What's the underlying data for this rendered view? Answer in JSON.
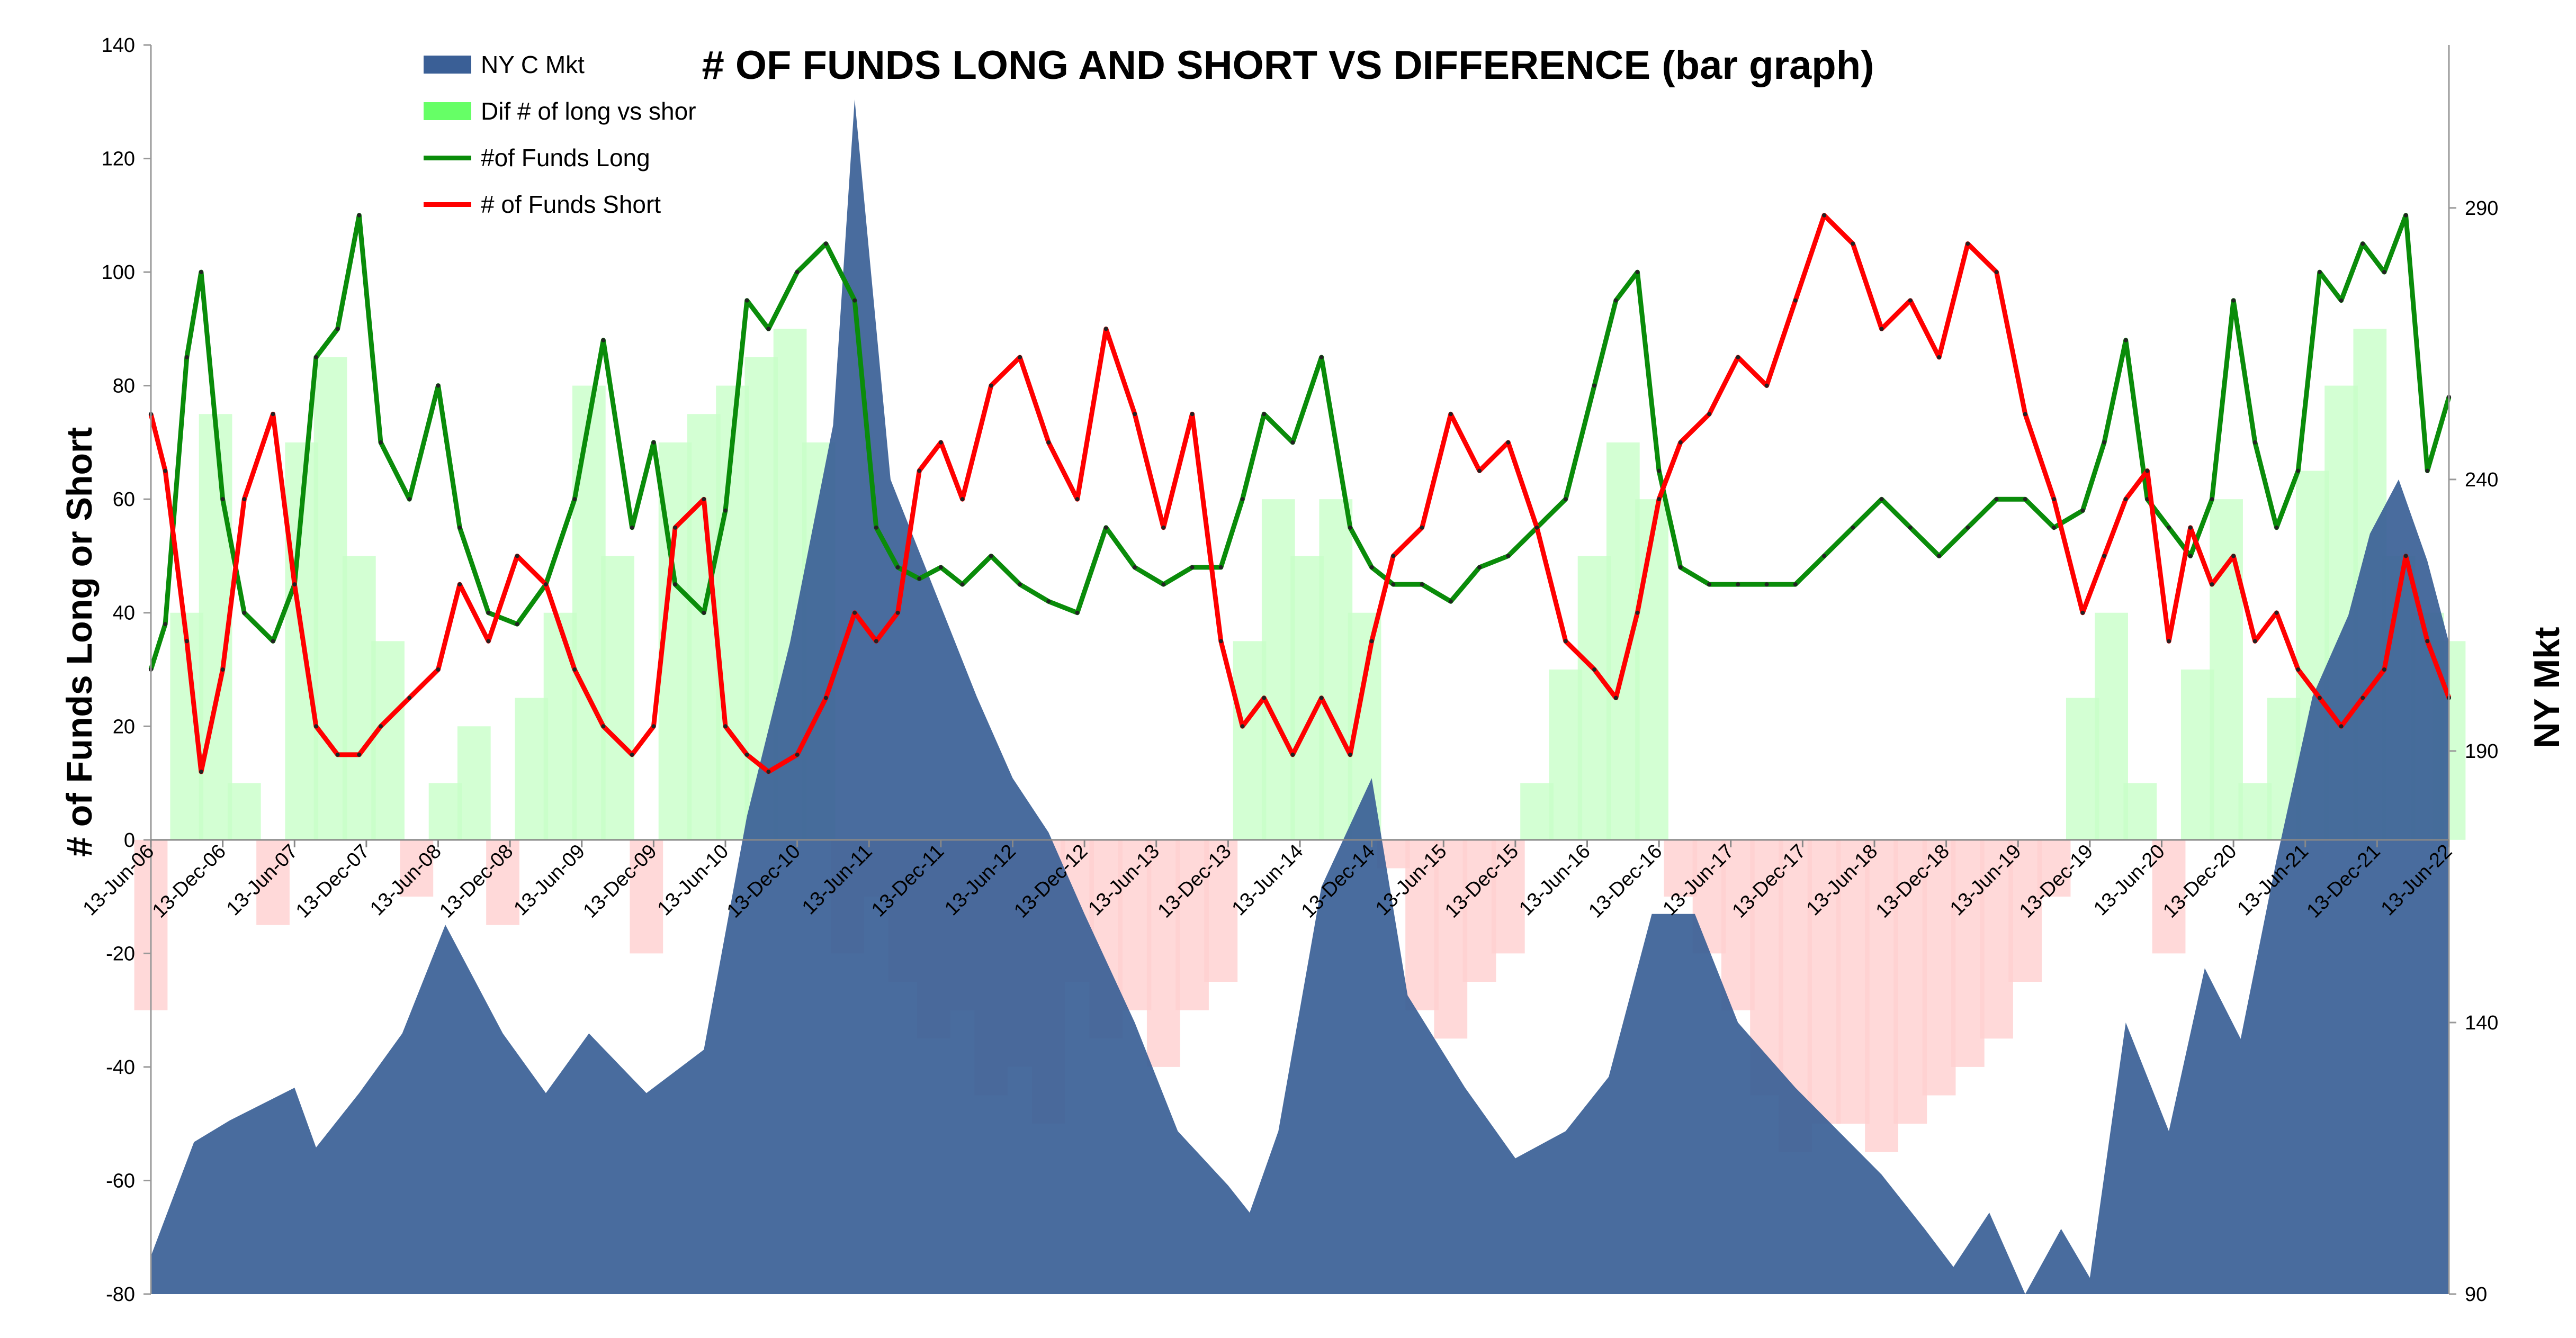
{
  "chart_data": {
    "type": "line",
    "title": "# OF FUNDS LONG AND SHORT VS DIFFERENCE (bar graph)",
    "ylabel_left": "# of Funds Long or Short",
    "ylabel_right": "NY Mkt",
    "ylim_left": [
      -80,
      140
    ],
    "yticks_left": [
      140,
      120,
      100,
      80,
      60,
      40,
      20,
      0,
      -20,
      -40,
      -60,
      -80
    ],
    "ylim_right": [
      90,
      320
    ],
    "yticks_right": [
      290,
      240,
      190,
      140,
      90
    ],
    "grid": false,
    "legend_position": "top-left",
    "x_tick_labels": [
      "13-Jun-06",
      "13-Dec-06",
      "13-Jun-07",
      "13-Dec-07",
      "13-Jun-08",
      "13-Dec-08",
      "13-Jun-09",
      "13-Dec-09",
      "13-Jun-10",
      "13-Dec-10",
      "13-Jun-11",
      "13-Dec-11",
      "13-Jun-12",
      "13-Dec-12",
      "13-Jun-13",
      "13-Dec-13",
      "13-Jun-14",
      "13-Dec-14",
      "13-Jun-15",
      "13-Dec-15",
      "13-Jun-16",
      "13-Dec-16",
      "13-Jun-17",
      "13-Dec-17",
      "13-Jun-18",
      "13-Dec-18",
      "13-Jun-19",
      "13-Dec-19",
      "13-Jun-20",
      "13-Dec-20",
      "13-Jun-21",
      "13-Dec-21",
      "13-Jun-22"
    ],
    "series": [
      {
        "name": "NY C Mkt",
        "kind": "area",
        "axis": "right",
        "color": "#3a5f96",
        "x": [
          2006.45,
          2006.75,
          2007.0,
          2007.45,
          2007.6,
          2007.9,
          2008.2,
          2008.5,
          2008.9,
          2009.2,
          2009.5,
          2009.9,
          2010.3,
          2010.6,
          2010.9,
          2011.2,
          2011.35,
          2011.6,
          2011.9,
          2012.2,
          2012.45,
          2012.7,
          2012.95,
          2013.3,
          2013.6,
          2013.95,
          2014.1,
          2014.3,
          2014.6,
          2014.95,
          2015.2,
          2015.6,
          2015.95,
          2016.3,
          2016.6,
          2016.9,
          2017.2,
          2017.5,
          2017.9,
          2018.2,
          2018.5,
          2018.8,
          2019.0,
          2019.25,
          2019.5,
          2019.75,
          2019.95,
          2020.2,
          2020.5,
          2020.75,
          2021.0,
          2021.25,
          2021.5,
          2021.75,
          2021.9,
          2022.1,
          2022.3,
          2022.45
        ],
        "values": [
          97,
          118,
          122,
          128,
          117,
          127,
          138,
          158,
          138,
          127,
          138,
          127,
          135,
          178,
          210,
          250,
          310,
          240,
          220,
          200,
          185,
          175,
          160,
          140,
          120,
          110,
          105,
          120,
          165,
          185,
          145,
          128,
          115,
          120,
          130,
          160,
          160,
          140,
          128,
          120,
          112,
          102,
          95,
          105,
          90,
          102,
          93,
          140,
          120,
          150,
          137,
          170,
          200,
          215,
          230,
          240,
          225,
          210
        ]
      },
      {
        "name": "Dif # of long vs shor",
        "kind": "bar",
        "axis": "left",
        "color": "#66ff66",
        "x": [
          2006.45,
          2006.7,
          2006.9,
          2007.1,
          2007.3,
          2007.5,
          2007.7,
          2007.9,
          2008.1,
          2008.3,
          2008.5,
          2008.7,
          2008.9,
          2009.1,
          2009.3,
          2009.5,
          2009.7,
          2009.9,
          2010.1,
          2010.3,
          2010.5,
          2010.7,
          2010.9,
          2011.1,
          2011.3,
          2011.5,
          2011.7,
          2011.9,
          2012.1,
          2012.3,
          2012.5,
          2012.7,
          2012.9,
          2013.1,
          2013.3,
          2013.5,
          2013.7,
          2013.9,
          2014.1,
          2014.3,
          2014.5,
          2014.7,
          2014.9,
          2015.1,
          2015.3,
          2015.5,
          2015.7,
          2015.9,
          2016.1,
          2016.3,
          2016.5,
          2016.7,
          2016.9,
          2017.1,
          2017.3,
          2017.5,
          2017.7,
          2017.9,
          2018.1,
          2018.3,
          2018.5,
          2018.7,
          2018.9,
          2019.1,
          2019.3,
          2019.5,
          2019.7,
          2019.9,
          2020.1,
          2020.3,
          2020.5,
          2020.7,
          2020.9,
          2021.1,
          2021.3,
          2021.5,
          2021.7,
          2021.9,
          2022.1,
          2022.3,
          2022.45
        ],
        "values": [
          -30,
          40,
          75,
          10,
          -15,
          70,
          85,
          50,
          35,
          -10,
          10,
          20,
          -15,
          25,
          40,
          80,
          50,
          -20,
          70,
          75,
          80,
          85,
          90,
          70,
          -20,
          -10,
          -25,
          -35,
          -30,
          -45,
          -40,
          -50,
          -25,
          -35,
          -30,
          -40,
          -30,
          -25,
          35,
          60,
          50,
          60,
          40,
          -5,
          -30,
          -35,
          -25,
          -20,
          10,
          30,
          50,
          70,
          60,
          -10,
          -20,
          -30,
          -45,
          -55,
          -50,
          -50,
          -55,
          -50,
          -45,
          -40,
          -35,
          -25,
          -10,
          25,
          40,
          10,
          -20,
          30,
          60,
          10,
          25,
          65,
          80,
          90,
          50,
          40,
          35
        ]
      },
      {
        "name": "#of Funds Long",
        "kind": "line",
        "axis": "left",
        "color": "#0a8c0a",
        "x": [
          2006.45,
          2006.55,
          2006.7,
          2006.8,
          2006.95,
          2007.1,
          2007.3,
          2007.45,
          2007.6,
          2007.75,
          2007.9,
          2008.05,
          2008.25,
          2008.45,
          2008.6,
          2008.8,
          2009.0,
          2009.2,
          2009.4,
          2009.6,
          2009.8,
          2009.95,
          2010.1,
          2010.3,
          2010.45,
          2010.6,
          2010.75,
          2010.95,
          2011.15,
          2011.35,
          2011.5,
          2011.65,
          2011.8,
          2011.95,
          2012.1,
          2012.3,
          2012.5,
          2012.7,
          2012.9,
          2013.1,
          2013.3,
          2013.5,
          2013.7,
          2013.9,
          2014.05,
          2014.2,
          2014.4,
          2014.6,
          2014.8,
          2014.95,
          2015.1,
          2015.3,
          2015.5,
          2015.7,
          2015.9,
          2016.1,
          2016.3,
          2016.5,
          2016.65,
          2016.8,
          2016.95,
          2017.1,
          2017.3,
          2017.5,
          2017.7,
          2017.9,
          2018.1,
          2018.3,
          2018.5,
          2018.7,
          2018.9,
          2019.1,
          2019.3,
          2019.5,
          2019.7,
          2019.9,
          2020.05,
          2020.2,
          2020.35,
          2020.5,
          2020.65,
          2020.8,
          2020.95,
          2021.1,
          2021.25,
          2021.4,
          2021.55,
          2021.7,
          2021.85,
          2022.0,
          2022.15,
          2022.3,
          2022.45
        ],
        "values": [
          30,
          38,
          85,
          100,
          60,
          40,
          35,
          45,
          85,
          90,
          110,
          70,
          60,
          80,
          55,
          40,
          38,
          45,
          60,
          88,
          55,
          70,
          45,
          40,
          58,
          95,
          90,
          100,
          105,
          95,
          55,
          48,
          46,
          48,
          45,
          50,
          45,
          42,
          40,
          55,
          48,
          45,
          48,
          48,
          60,
          75,
          70,
          85,
          55,
          48,
          45,
          45,
          42,
          48,
          50,
          55,
          60,
          80,
          95,
          100,
          65,
          48,
          45,
          45,
          45,
          45,
          50,
          55,
          60,
          55,
          50,
          55,
          60,
          60,
          55,
          58,
          70,
          88,
          60,
          55,
          50,
          60,
          95,
          70,
          55,
          65,
          100,
          95,
          105,
          100,
          110,
          65,
          78
        ]
      },
      {
        "name": "# of Funds Short",
        "kind": "line",
        "axis": "left",
        "color": "#ff0000",
        "x": [
          2006.45,
          2006.55,
          2006.7,
          2006.8,
          2006.95,
          2007.1,
          2007.3,
          2007.45,
          2007.6,
          2007.75,
          2007.9,
          2008.05,
          2008.25,
          2008.45,
          2008.6,
          2008.8,
          2009.0,
          2009.2,
          2009.4,
          2009.6,
          2009.8,
          2009.95,
          2010.1,
          2010.3,
          2010.45,
          2010.6,
          2010.75,
          2010.95,
          2011.15,
          2011.35,
          2011.5,
          2011.65,
          2011.8,
          2011.95,
          2012.1,
          2012.3,
          2012.5,
          2012.7,
          2012.9,
          2013.1,
          2013.3,
          2013.5,
          2013.7,
          2013.9,
          2014.05,
          2014.2,
          2014.4,
          2014.6,
          2014.8,
          2014.95,
          2015.1,
          2015.3,
          2015.5,
          2015.7,
          2015.9,
          2016.1,
          2016.3,
          2016.5,
          2016.65,
          2016.8,
          2016.95,
          2017.1,
          2017.3,
          2017.5,
          2017.7,
          2017.9,
          2018.1,
          2018.3,
          2018.5,
          2018.7,
          2018.9,
          2019.1,
          2019.3,
          2019.5,
          2019.7,
          2019.9,
          2020.05,
          2020.2,
          2020.35,
          2020.5,
          2020.65,
          2020.8,
          2020.95,
          2021.1,
          2021.25,
          2021.4,
          2021.55,
          2021.7,
          2021.85,
          2022.0,
          2022.15,
          2022.3,
          2022.45
        ],
        "values": [
          75,
          65,
          35,
          12,
          30,
          60,
          75,
          45,
          20,
          15,
          15,
          20,
          25,
          30,
          45,
          35,
          50,
          45,
          30,
          20,
          15,
          20,
          55,
          60,
          20,
          15,
          12,
          15,
          25,
          40,
          35,
          40,
          65,
          70,
          60,
          80,
          85,
          70,
          60,
          90,
          75,
          55,
          75,
          35,
          20,
          25,
          15,
          25,
          15,
          35,
          50,
          55,
          75,
          65,
          70,
          55,
          35,
          30,
          25,
          40,
          60,
          70,
          75,
          85,
          80,
          95,
          110,
          105,
          90,
          95,
          85,
          105,
          100,
          75,
          60,
          40,
          50,
          60,
          65,
          35,
          55,
          45,
          50,
          35,
          40,
          30,
          25,
          20,
          25,
          30,
          50,
          35,
          25
        ]
      }
    ]
  }
}
